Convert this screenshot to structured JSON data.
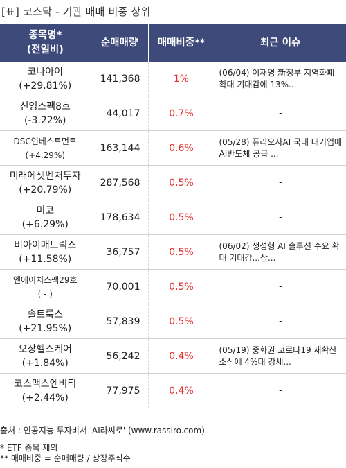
{
  "title": "[표] 코스닥 - 기관 매매 비중 상위",
  "headers": {
    "name_line1": "종목명*",
    "name_line2": "(전일비)",
    "volume": "순매매량",
    "ratio": "매매비중**",
    "issue": "최근 이슈"
  },
  "rows": [
    {
      "name": "코나아이",
      "change": "(+29.81%)",
      "volume": "141,368",
      "ratio": "1%",
      "issue": "(06/04) 이재명 新정부 지역화폐 확대 기대감에 13%..."
    },
    {
      "name": "신영스팩8호",
      "change": "(-3.22%)",
      "volume": "44,017",
      "ratio": "0.7%",
      "issue": "-"
    },
    {
      "name": "DSC인베스트먼트",
      "change": "(+4.29%)",
      "volume": "163,144",
      "ratio": "0.6%",
      "issue": "(05/28) 퓨리오사AI 국내 대기업에 AI반도체 공급 ..."
    },
    {
      "name": "미래에셋벤처투자",
      "change": "(+20.79%)",
      "volume": "287,568",
      "ratio": "0.5%",
      "issue": "-"
    },
    {
      "name": "미코",
      "change": "(+6.29%)",
      "volume": "178,634",
      "ratio": "0.5%",
      "issue": "-"
    },
    {
      "name": "비아이매트릭스",
      "change": "(+11.58%)",
      "volume": "36,757",
      "ratio": "0.5%",
      "issue": "(06/02) 생성형 AI 솔루션 수요 확대 기대감...상..."
    },
    {
      "name": "엔에이치스팩29호",
      "change": "( - )",
      "volume": "70,001",
      "ratio": "0.5%",
      "issue": "-"
    },
    {
      "name": "솔트룩스",
      "change": "(+21.95%)",
      "volume": "57,839",
      "ratio": "0.5%",
      "issue": "-"
    },
    {
      "name": "오상헬스케어",
      "change": "(+1.84%)",
      "volume": "56,242",
      "ratio": "0.4%",
      "issue": "(05/19) 중화권 코로나19 재확산 소식에 4%대 강세..."
    },
    {
      "name": "코스맥스엔비티",
      "change": "(+2.44%)",
      "volume": "77,975",
      "ratio": "0.4%",
      "issue": "-"
    }
  ],
  "footer": {
    "source": "출처 : 인공지능 투자비서 'AI라씨로' (www.rassiro.com)",
    "note1": "* ETF 종목 제외",
    "note2": "** 매매비중 = 순매매량 / 상장주식수"
  },
  "colors": {
    "header_bg": "#3d4a7a",
    "ratio_text": "#e53030"
  }
}
